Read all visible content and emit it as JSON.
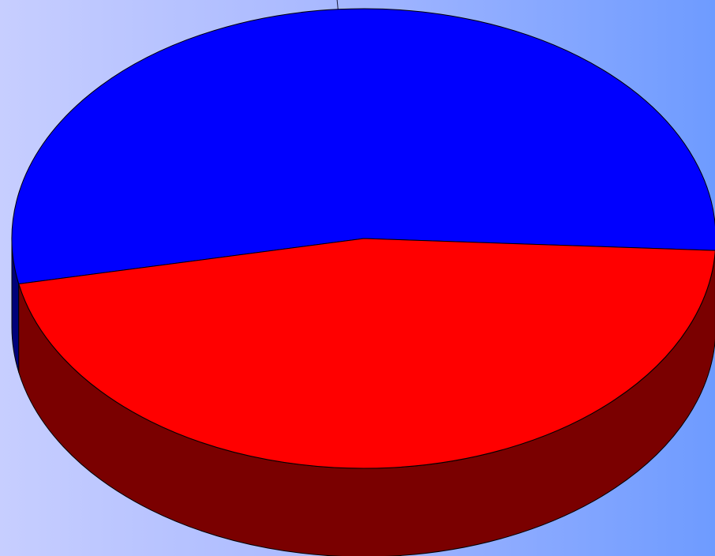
{
  "chart_data": {
    "type": "pie",
    "style": "3d",
    "values": [
      54,
      46
    ],
    "colors": [
      "#0000ff",
      "#ff0000"
    ],
    "side_colors": [
      "#00007a",
      "#7a0000"
    ],
    "edge_color": "#000000",
    "background_colors": [
      "#c7ceff",
      "#6e9bff"
    ],
    "legend": "none",
    "data_labels": "none"
  }
}
